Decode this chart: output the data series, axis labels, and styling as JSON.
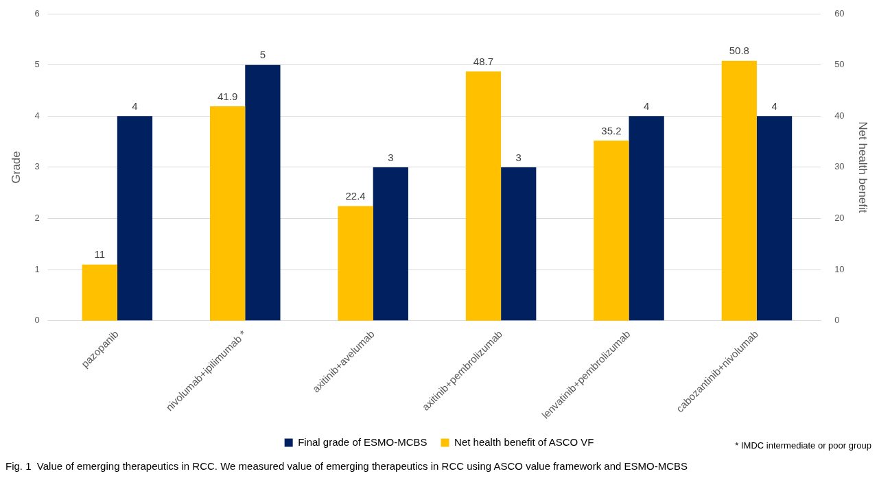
{
  "chart_data": {
    "type": "bar",
    "categories": [
      "pazopanib",
      "nivolumab+ipilimumab *",
      "axitinib+avelumab",
      "axitinib+pembrolizumab",
      "lenvatinib+pembrolizumab",
      "cabozantinib+nivolumab"
    ],
    "series": [
      {
        "name": "Net health benefit of ASCO VF",
        "color": "#ffc000",
        "axis": "y2",
        "values": [
          11,
          41.9,
          22.4,
          48.7,
          35.2,
          50.8
        ]
      },
      {
        "name": "Final grade of ESMO-MCBS",
        "color": "#002060",
        "values": [
          4,
          5,
          3,
          3,
          4,
          4
        ]
      }
    ],
    "ylabel": "Grade",
    "y2label": "Net health benefit",
    "ylim": [
      0,
      6
    ],
    "yticks": [
      0,
      1,
      2,
      3,
      4,
      5,
      6
    ],
    "y2lim": [
      0,
      60
    ],
    "y2ticks": [
      0,
      10,
      20,
      30,
      40,
      50,
      60
    ],
    "grid": "y",
    "legend": "bottom",
    "data_labels": true,
    "annotations": [
      "* IMDC intermediate or poor group",
      "Fig. 1  Value of emerging therapeutics in RCC. We measured value of emerging therapeutics in RCC using ASCO value framework and ESMO-MCBS"
    ]
  }
}
